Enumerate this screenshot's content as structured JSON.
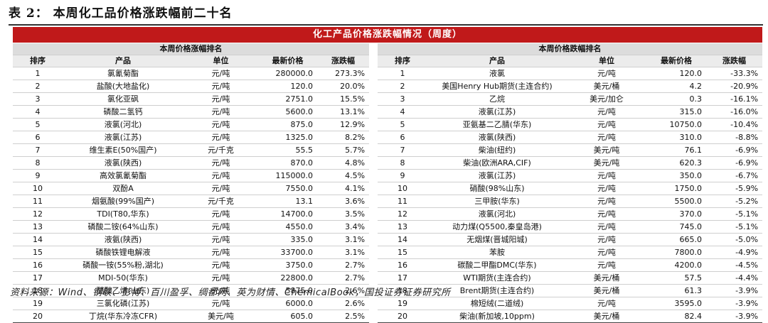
{
  "page_title": "表 2：  本周化工品价格涨跌幅前二十名",
  "banner_title": "化工产品价格涨跌幅情况（周度）",
  "left": {
    "title": "本周价格涨幅排名",
    "columns": [
      "排序",
      "产品",
      "单位",
      "最新价格",
      "涨跌幅"
    ],
    "rows": [
      [
        "1",
        "氯氰菊酯",
        "元/吨",
        "280000.0",
        "273.3%"
      ],
      [
        "2",
        "盐酸(大地盐化)",
        "元/吨",
        "120.0",
        "20.0%"
      ],
      [
        "3",
        "氯化亚砜",
        "元/吨",
        "2751.0",
        "15.5%"
      ],
      [
        "4",
        "磷酸二氢钙",
        "元/吨",
        "5600.0",
        "13.1%"
      ],
      [
        "5",
        "液氯(河北)",
        "元/吨",
        "875.0",
        "12.9%"
      ],
      [
        "6",
        "液氯(江苏)",
        "元/吨",
        "1325.0",
        "8.2%"
      ],
      [
        "7",
        "维生素E(50%国产)",
        "元/千克",
        "55.5",
        "5.7%"
      ],
      [
        "8",
        "液氯(陕西)",
        "元/吨",
        "870.0",
        "4.8%"
      ],
      [
        "9",
        "高效氯氰菊酯",
        "元/吨",
        "115000.0",
        "4.5%"
      ],
      [
        "10",
        "双酚A",
        "元/吨",
        "7550.0",
        "4.1%"
      ],
      [
        "11",
        "烟氨酸(99%国产)",
        "元/千克",
        "13.1",
        "3.6%"
      ],
      [
        "12",
        "TDI(T80,华东)",
        "元/吨",
        "14700.0",
        "3.5%"
      ],
      [
        "13",
        "磷酸二铵(64%山东)",
        "元/吨",
        "4550.0",
        "3.4%"
      ],
      [
        "14",
        "液氨(陕西)",
        "元/吨",
        "335.0",
        "3.1%"
      ],
      [
        "15",
        "磷酸铁锂电解液",
        "元/吨",
        "33700.0",
        "3.1%"
      ],
      [
        "16",
        "磷酸一铵(55%粉,湖北)",
        "元/吨",
        "3750.0",
        "2.7%"
      ],
      [
        "17",
        "MDI-50(华东)",
        "元/吨",
        "22800.0",
        "2.7%"
      ],
      [
        "18",
        "醋酸乙烯(山东)",
        "元/吨",
        "5875.0",
        "2.6%"
      ],
      [
        "19",
        "三氯化磷(江苏)",
        "元/吨",
        "6000.0",
        "2.6%"
      ],
      [
        "20",
        "丁烷(华东冷冻CFR)",
        "美元/吨",
        "605.0",
        "2.5%"
      ]
    ]
  },
  "right": {
    "title": "本周价格跌幅排名",
    "columns": [
      "排序",
      "产品",
      "单位",
      "最新价格",
      "涨跌幅"
    ],
    "rows": [
      [
        "1",
        "液氯",
        "元/吨",
        "120.0",
        "-33.3%"
      ],
      [
        "2",
        "美国Henry Hub期货(主连合约)",
        "美元/桶",
        "4.2",
        "-20.9%"
      ],
      [
        "3",
        "乙烷",
        "美元/加仑",
        "0.3",
        "-16.1%"
      ],
      [
        "4",
        "液氯(江苏)",
        "元/吨",
        "315.0",
        "-16.0%"
      ],
      [
        "5",
        "亚氨基二乙腈(华东)",
        "元/吨",
        "10750.0",
        "-10.4%"
      ],
      [
        "6",
        "液氯(陕西)",
        "元/吨",
        "310.0",
        "-8.8%"
      ],
      [
        "7",
        "柴油(纽约)",
        "美元/吨",
        "76.1",
        "-6.9%"
      ],
      [
        "8",
        "柴油(欧洲ARA,CIF)",
        "美元/吨",
        "620.3",
        "-6.9%"
      ],
      [
        "9",
        "液氯(江苏)",
        "元/吨",
        "350.0",
        "-6.7%"
      ],
      [
        "10",
        "硝酸(98%山东)",
        "元/吨",
        "1750.0",
        "-5.9%"
      ],
      [
        "11",
        "三甲胺(华东)",
        "元/吨",
        "5500.0",
        "-5.2%"
      ],
      [
        "12",
        "液氯(河北)",
        "元/吨",
        "370.0",
        "-5.1%"
      ],
      [
        "13",
        "动力煤(Q5500,秦皇岛港)",
        "元/吨",
        "745.0",
        "-5.1%"
      ],
      [
        "14",
        "无烟煤(晋城阳城)",
        "元/吨",
        "665.0",
        "-5.0%"
      ],
      [
        "15",
        "苯胺",
        "元/吨",
        "7800.0",
        "-4.9%"
      ],
      [
        "16",
        "碳酸二甲酯DMC(华东)",
        "元/吨",
        "4200.0",
        "-4.5%"
      ],
      [
        "17",
        "WTI期货(主连合约)",
        "美元/桶",
        "57.5",
        "-4.4%"
      ],
      [
        "18",
        "Brent期货(主连合约)",
        "美元/桶",
        "61.3",
        "-3.9%"
      ],
      [
        "19",
        "棉短绒(二道绒)",
        "元/吨",
        "3595.0",
        "-3.9%"
      ],
      [
        "20",
        "柴油(新加坡,10ppm)",
        "美元/桶",
        "82.4",
        "-3.9%"
      ]
    ]
  },
  "source": "资料来源：Wind、钢联、彭博、百川盈孚、绸都网、英为财情、ChemicalBook，国投证券证券研究所"
}
